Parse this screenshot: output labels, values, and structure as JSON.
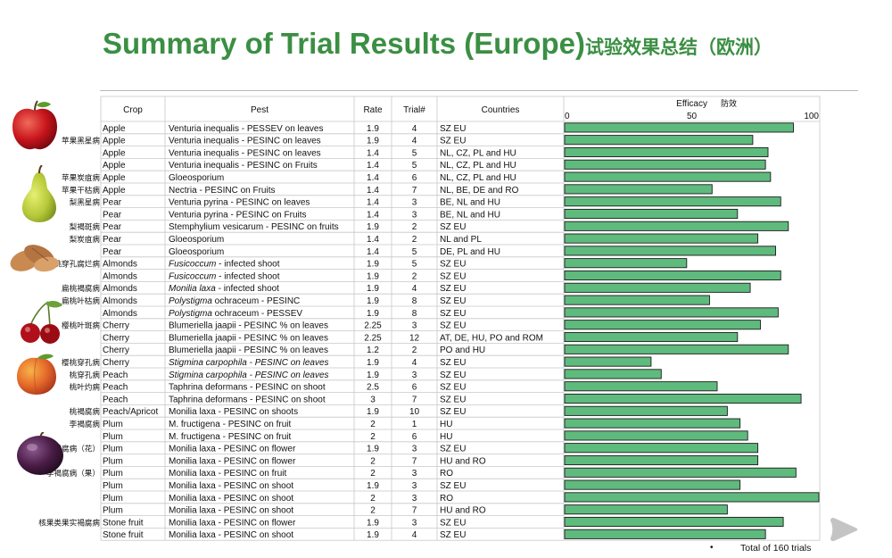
{
  "title": {
    "en": "Summary of Trial Results (Europe)",
    "zh": "试验效果总结（欧洲）"
  },
  "headers": {
    "crop": "Crop",
    "pest": "Pest",
    "rate": "Rate",
    "trial": "Trial#",
    "countries": "Countries",
    "efficacy_en": "Efficacy",
    "efficacy_zh": "防效"
  },
  "footer": "Total of 160 trials",
  "bullet": "•",
  "chart_data": {
    "type": "bar",
    "orientation": "horizontal",
    "xlim": [
      0,
      100
    ],
    "xticks": [
      "0",
      "50",
      "100"
    ],
    "bar_color": "#5fba7d",
    "rows": [
      {
        "crop": "Apple",
        "pest": "Venturia inequalis - PESSEV on leaves",
        "rate": "1.9",
        "trial": "4",
        "countries": "SZ EU",
        "efficacy": 90
      },
      {
        "crop": "Apple",
        "pest": "Venturia inequalis - PESINC on leaves",
        "rate": "1.9",
        "trial": "4",
        "countries": "SZ EU",
        "efficacy": 74
      },
      {
        "crop": "Apple",
        "pest": "Venturia inequalis - PESINC on leaves",
        "rate": "1.4",
        "trial": "5",
        "countries": "NL, CZ, PL and HU",
        "efficacy": 80
      },
      {
        "crop": "Apple",
        "pest": "Venturia inequalis - PESINC on Fruits",
        "rate": "1.4",
        "trial": "5",
        "countries": "NL, CZ, PL and HU",
        "efficacy": 79
      },
      {
        "crop": "Apple",
        "pest": "Gloeosporium",
        "rate": "1.4",
        "trial": "6",
        "countries": "NL, CZ, PL and HU",
        "efficacy": 81
      },
      {
        "crop": "Apple",
        "pest": "Nectria - PESINC on Fruits",
        "rate": "1.4",
        "trial": "7",
        "countries": "NL, BE, DE and RO",
        "efficacy": 58
      },
      {
        "crop": "Pear",
        "pest": "Venturia pyrina - PESINC on leaves",
        "rate": "1.4",
        "trial": "3",
        "countries": "BE, NL and HU",
        "efficacy": 85
      },
      {
        "crop": "Pear",
        "pest": "Venturia pyrina - PESINC on Fruits",
        "rate": "1.4",
        "trial": "3",
        "countries": "BE, NL and HU",
        "efficacy": 68
      },
      {
        "crop": "Pear",
        "pest": "Stemphylium vesicarum - PESINC on fruits",
        "rate": "1.9",
        "trial": "2",
        "countries": "SZ EU",
        "efficacy": 88
      },
      {
        "crop": "Pear",
        "pest": "Gloeosporium",
        "rate": "1.4",
        "trial": "2",
        "countries": "NL and PL",
        "efficacy": 76
      },
      {
        "crop": "Pear",
        "pest": "Gloeosporium",
        "rate": "1.4",
        "trial": "5",
        "countries": "DE, PL and HU",
        "efficacy": 83
      },
      {
        "crop": "Almonds",
        "pest": "Fusicoccum - infected shoot",
        "pest_italic": "Fusicoccum",
        "rate": "1.9",
        "trial": "5",
        "countries": "SZ EU",
        "efficacy": 48
      },
      {
        "crop": "Almonds",
        "pest": "Fusicoccum - infected shoot",
        "pest_italic": "Fusicoccum",
        "rate": "1.9",
        "trial": "2",
        "countries": "SZ EU",
        "efficacy": 85
      },
      {
        "crop": "Almonds",
        "pest": "Monilia laxa - infected shoot",
        "pest_italic": "Monilia laxa",
        "rate": "1.9",
        "trial": "4",
        "countries": "SZ EU",
        "efficacy": 73
      },
      {
        "crop": "Almonds",
        "pest": "Polystigma ochraceum - PESINC",
        "pest_italic": "Polystigma",
        "rate": "1.9",
        "trial": "8",
        "countries": "SZ EU",
        "efficacy": 57
      },
      {
        "crop": "Almonds",
        "pest": "Polystigma ochraceum - PESSEV",
        "pest_italic": "Polystigma",
        "rate": "1.9",
        "trial": "8",
        "countries": "SZ EU",
        "efficacy": 84
      },
      {
        "crop": "Cherry",
        "pest": "Blumeriella jaapii - PESINC % on leaves",
        "rate": "2.25",
        "trial": "3",
        "countries": "SZ EU",
        "efficacy": 77
      },
      {
        "crop": "Cherry",
        "pest": "Blumeriella jaapii - PESINC % on leaves",
        "rate": "2.25",
        "trial": "12",
        "countries": "AT, DE, HU, PO and ROM",
        "efficacy": 68
      },
      {
        "crop": "Cherry",
        "pest": "Blumeriella jaapii - PESINC % on leaves",
        "rate": "1.2",
        "trial": "2",
        "countries": " PO and HU",
        "efficacy": 88
      },
      {
        "crop": "Cherry",
        "pest": "Stigmina carpophila - PESINC on leaves",
        "pest_italic": "all",
        "rate": "1.9",
        "trial": "4",
        "countries": "SZ EU",
        "efficacy": 34
      },
      {
        "crop": "Peach",
        "pest": "Stigmina carpophila - PESINC on leaves",
        "pest_italic": "all",
        "rate": "1.9",
        "trial": "3",
        "countries": "SZ EU",
        "efficacy": 38
      },
      {
        "crop": "Peach",
        "pest": "Taphrina deformans - PESINC on shoot",
        "rate": "2.5",
        "trial": "6",
        "countries": "SZ EU",
        "efficacy": 60
      },
      {
        "crop": "Peach",
        "pest": "Taphrina deformans - PESINC on shoot",
        "rate": "3",
        "trial": "7",
        "countries": "SZ EU",
        "efficacy": 93
      },
      {
        "crop": "Peach/Apricot",
        "pest": "Monilia laxa - PESINC on shoots",
        "rate": "1.9",
        "trial": "10",
        "countries": "SZ EU",
        "efficacy": 64
      },
      {
        "crop": "Plum",
        "pest": "M. fructigena - PESINC on fruit",
        "rate": "2",
        "trial": "1",
        "countries": "HU",
        "efficacy": 69
      },
      {
        "crop": "Plum",
        "pest": "M. fructigena - PESINC on fruit",
        "rate": "2",
        "trial": "6",
        "countries": "HU",
        "efficacy": 72
      },
      {
        "crop": "Plum",
        "pest": "Monilia laxa - PESINC on flower",
        "rate": "1.9",
        "trial": "3",
        "countries": "SZ EU",
        "efficacy": 76
      },
      {
        "crop": "Plum",
        "pest": "Monilia laxa - PESINC on flower",
        "rate": "2",
        "trial": "7",
        "countries": "HU and RO",
        "efficacy": 76
      },
      {
        "crop": "Plum",
        "pest": "Monilia laxa - PESINC on fruit",
        "rate": "2",
        "trial": "3",
        "countries": "RO",
        "efficacy": 91
      },
      {
        "crop": "Plum",
        "pest": "Monilia laxa - PESINC on shoot",
        "rate": "1.9",
        "trial": "3",
        "countries": "SZ EU",
        "efficacy": 69
      },
      {
        "crop": "Plum",
        "pest": "Monilia laxa - PESINC on shoot",
        "rate": "2",
        "trial": "3",
        "countries": "RO",
        "efficacy": 100
      },
      {
        "crop": "Plum",
        "pest": "Monilia laxa - PESINC on shoot",
        "rate": "2",
        "trial": "7",
        "countries": "HU and RO",
        "efficacy": 64
      },
      {
        "crop": "Stone fruit",
        "pest": "Monilia laxa - PESINC on flower",
        "rate": "1.9",
        "trial": "3",
        "countries": "SZ EU",
        "efficacy": 86
      },
      {
        "crop": "Stone fruit",
        "pest": "Monilia laxa - PESINC on shoot",
        "rate": "1.9",
        "trial": "4",
        "countries": "SZ EU",
        "efficacy": 79
      }
    ]
  },
  "disease_labels": [
    {
      "text": "苹果黑星病",
      "row": 1
    },
    {
      "text": "苹果炭疽病",
      "row": 4
    },
    {
      "text": "苹果干枯病",
      "row": 5
    },
    {
      "text": "梨黑星病",
      "row": 6
    },
    {
      "text": "梨褐斑病",
      "row": 8
    },
    {
      "text": "梨炭疽病",
      "row": 9
    },
    {
      "text": "扁桃穿孔腐烂病",
      "row": 11
    },
    {
      "text": "扁桃褐腐病",
      "row": 13
    },
    {
      "text": "扁桃叶枯病",
      "row": 14
    },
    {
      "text": "樱桃叶斑病",
      "row": 16
    },
    {
      "text": "樱桃穿孔病",
      "row": 19
    },
    {
      "text": "桃穿孔病",
      "row": 20
    },
    {
      "text": "桃叶灼病",
      "row": 21
    },
    {
      "text": "桃褐腐病",
      "row": 23
    },
    {
      "text": "李褐腐病",
      "row": 24
    },
    {
      "text": "李褐腐病（花）",
      "row": 26
    },
    {
      "text": "李褐腐病（果）",
      "row": 28
    },
    {
      "text": "核果类果实褐腐病",
      "row": 32
    }
  ],
  "illustrations": [
    {
      "name": "apple-illustration",
      "row": 0
    },
    {
      "name": "pear-illustration",
      "row": 6
    },
    {
      "name": "almond-illustration",
      "row": 10
    },
    {
      "name": "cherry-illustration",
      "row": 16
    },
    {
      "name": "peach-illustration",
      "row": 21
    },
    {
      "name": "plum-illustration",
      "row": 26
    }
  ]
}
